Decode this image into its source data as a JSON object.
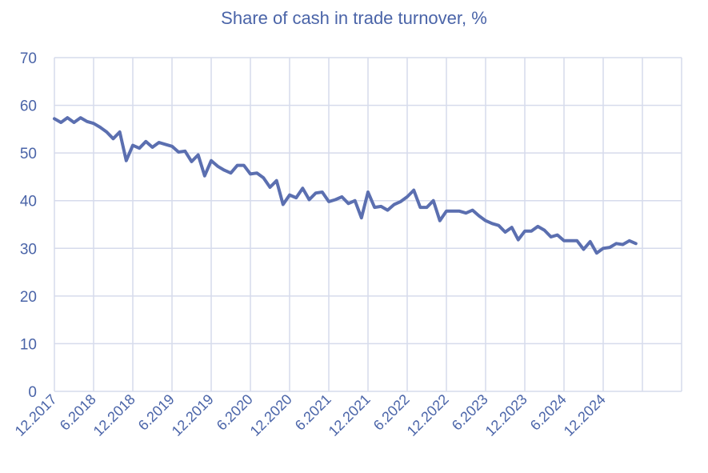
{
  "colors": {
    "line": "#5b6fb0",
    "text": "#4a64a8",
    "grid": "#d6dbec"
  },
  "chart_data": {
    "type": "line",
    "title": "Share of cash in trade turnover, %",
    "xlabel": "",
    "ylabel": "",
    "ylim": [
      0,
      70
    ],
    "yticks": [
      0,
      10,
      20,
      30,
      40,
      50,
      60,
      70
    ],
    "grid": true,
    "legend": "none",
    "x_tick_labels": [
      "12.2017",
      "6.2018",
      "12.2018",
      "6.2019",
      "12.2019",
      "6.2020",
      "12.2020",
      "6.2021",
      "12.2021",
      "6.2022",
      "12.2022",
      "6.2023",
      "12.2023",
      "6.2024",
      "12.2024"
    ],
    "x_start": "12.2017",
    "x_end": "12.2025",
    "series": [
      {
        "name": "",
        "values": [
          57.2,
          56.4,
          57.4,
          56.4,
          57.4,
          56.6,
          56.2,
          55.4,
          54.4,
          53.0,
          54.4,
          48.4,
          51.6,
          51.0,
          52.4,
          51.2,
          52.2,
          51.8,
          51.4,
          50.2,
          50.4,
          48.2,
          49.6,
          45.2,
          48.4,
          47.2,
          46.4,
          45.8,
          47.4,
          47.4,
          45.6,
          45.8,
          44.8,
          42.8,
          44.2,
          39.2,
          41.2,
          40.6,
          42.6,
          40.2,
          41.6,
          41.8,
          39.8,
          40.2,
          40.8,
          39.4,
          40.0,
          36.4,
          41.8,
          38.6,
          38.8,
          38.0,
          39.2,
          39.8,
          40.8,
          42.2,
          38.6,
          38.6,
          40.0,
          35.8,
          37.8,
          37.8,
          37.8,
          37.4,
          38.0,
          36.8,
          35.8,
          35.2,
          34.8,
          33.4,
          34.4,
          31.8,
          33.6,
          33.6,
          34.6,
          33.8,
          32.4,
          32.8,
          31.6,
          31.6,
          31.6,
          29.8,
          31.4,
          29.0,
          30.0,
          30.2,
          31.0,
          30.8,
          31.6,
          31.0
        ]
      }
    ]
  }
}
